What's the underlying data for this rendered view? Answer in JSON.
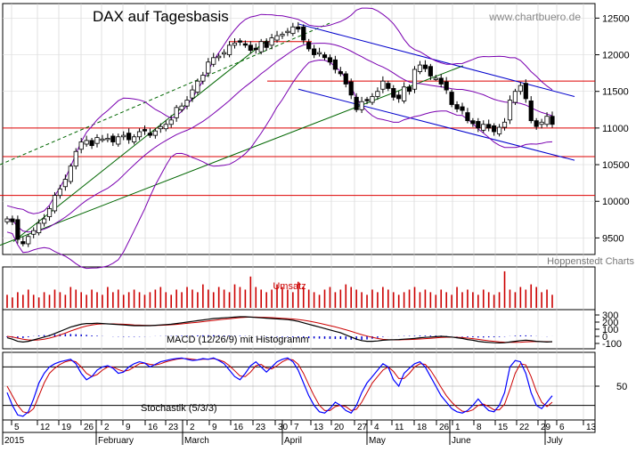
{
  "chart_data": {
    "type": "candlestick",
    "title": "DAX auf Tagesbasis",
    "watermark": "www.chartbuero.de",
    "source": "Hoppenstedt Charts",
    "ylim": [
      9250,
      12650
    ],
    "y_ticks": [
      9500,
      10000,
      10500,
      11000,
      11500,
      12000,
      12500
    ],
    "x_day_ticks": [
      "5",
      "12",
      "19",
      "26",
      "2",
      "9",
      "16",
      "23",
      "2",
      "9",
      "16",
      "23",
      "30",
      "7",
      "13",
      "20",
      "27",
      "4",
      "11",
      "18",
      "26",
      "1",
      "8",
      "15",
      "22",
      "29",
      "6",
      "13"
    ],
    "x_month_labels": [
      "2015",
      "February",
      "March",
      "April",
      "May",
      "June",
      "July"
    ],
    "colors": {
      "up": "#ffffff",
      "down": "#000000",
      "bollinger": "#7a00b0",
      "resistance": "#dd0000",
      "trend_green": "#006600",
      "channel_blue": "#0000cc",
      "volume": "#cc0000",
      "macd": "#000000",
      "signal": "#cc0000",
      "histogram": "#0000cc",
      "stoch_k": "#0000ff",
      "stoch_d": "#cc0000"
    },
    "horizontal_levels": [
      11640,
      11000,
      10610,
      10080,
      12180
    ],
    "closes": [
      9760,
      9720,
      9480,
      9420,
      9520,
      9600,
      9700,
      9760,
      9900,
      10080,
      10170,
      10300,
      10480,
      10680,
      10810,
      10830,
      10760,
      10870,
      10850,
      10860,
      10810,
      10880,
      10900,
      10840,
      10880,
      10950,
      10960,
      10900,
      10960,
      11020,
      11050,
      11110,
      11280,
      11300,
      11380,
      11520,
      11640,
      11720,
      11900,
      11960,
      11980,
      12030,
      12130,
      12160,
      12180,
      12130,
      12060,
      12070,
      12180,
      12100,
      12230,
      12260,
      12280,
      12320,
      12380,
      12350,
      12200,
      12080,
      12000,
      12030,
      11960,
      11900,
      11800,
      11740,
      11600,
      11450,
      11250,
      11360,
      11380,
      11430,
      11500,
      11640,
      11540,
      11420,
      11400,
      11560,
      11500,
      11800,
      11860,
      11810,
      11710,
      11680,
      11600,
      11520,
      11320,
      11260,
      11240,
      11100,
      11060,
      11000,
      11050,
      11000,
      10950,
      11010,
      11080,
      11380,
      11500,
      11580,
      11400,
      11100,
      11020,
      11080,
      11160,
      11050
    ],
    "volume": {
      "label": "Umsatz",
      "values": [
        5,
        4,
        6,
        5,
        7,
        5,
        4,
        6,
        5,
        7,
        6,
        5,
        8,
        7,
        6,
        5,
        7,
        6,
        5,
        8,
        6,
        7,
        5,
        6,
        7,
        6,
        5,
        6,
        7,
        8,
        6,
        5,
        7,
        6,
        8,
        7,
        6,
        9,
        7,
        6,
        8,
        7,
        6,
        9,
        8,
        7,
        12,
        8,
        7,
        6,
        7,
        9,
        8,
        7,
        6,
        10,
        8,
        7,
        6,
        5,
        7,
        8,
        6,
        7,
        9,
        8,
        7,
        6,
        5,
        7,
        6,
        8,
        7,
        6,
        5,
        6,
        7,
        8,
        6,
        7,
        6,
        5,
        7,
        6,
        5,
        8,
        6,
        7,
        6,
        5,
        7,
        6,
        5,
        6,
        14,
        7,
        6,
        8,
        7,
        9,
        8,
        6,
        7,
        5
      ]
    },
    "macd": {
      "label": "MACD (12/26/9) mit Histogramm",
      "ylim": [
        -150,
        350
      ],
      "y_ticks": [
        300,
        200,
        100,
        0,
        -100
      ],
      "macd": [
        -20,
        -40,
        -70,
        -80,
        -70,
        -50,
        -30,
        -10,
        10,
        40,
        70,
        100,
        130,
        150,
        170,
        180,
        180,
        185,
        180,
        175,
        170,
        165,
        160,
        155,
        150,
        150,
        150,
        150,
        155,
        160,
        165,
        170,
        180,
        190,
        200,
        210,
        220,
        230,
        240,
        250,
        255,
        260,
        265,
        270,
        275,
        275,
        270,
        265,
        260,
        255,
        250,
        245,
        240,
        235,
        225,
        210,
        190,
        170,
        150,
        130,
        110,
        90,
        70,
        50,
        20,
        -10,
        -40,
        -60,
        -70,
        -70,
        -65,
        -55,
        -50,
        -48,
        -45,
        -40,
        -35,
        -30,
        -20,
        -15,
        -10,
        -5,
        0,
        -5,
        -10,
        -20,
        -30,
        -45,
        -55,
        -70,
        -80,
        -85,
        -90,
        -92,
        -90,
        -80,
        -70,
        -60,
        -55,
        -60,
        -70,
        -75,
        -80,
        -75
      ],
      "signal": [
        0,
        -10,
        -25,
        -40,
        -50,
        -55,
        -50,
        -40,
        -25,
        -5,
        20,
        45,
        75,
        100,
        125,
        145,
        160,
        170,
        175,
        175,
        175,
        172,
        170,
        165,
        160,
        158,
        155,
        152,
        152,
        155,
        158,
        162,
        168,
        175,
        182,
        190,
        198,
        206,
        215,
        224,
        232,
        240,
        248,
        255,
        262,
        268,
        270,
        270,
        268,
        266,
        262,
        258,
        254,
        249,
        244,
        236,
        226,
        214,
        200,
        184,
        168,
        150,
        132,
        113,
        92,
        70,
        46,
        24,
        4,
        -14,
        -30,
        -42,
        -48,
        -50,
        -50,
        -48,
        -45,
        -42,
        -38,
        -33,
        -28,
        -22,
        -16,
        -12,
        -12,
        -14,
        -18,
        -25,
        -33,
        -43,
        -53,
        -62,
        -70,
        -77,
        -82,
        -84,
        -84,
        -82,
        -78,
        -75,
        -74,
        -74,
        -75,
        -76
      ]
    },
    "stochastic": {
      "label": "Stochastik (5/3/3)",
      "ylim": [
        0,
        100
      ],
      "y_ticks": [
        50
      ],
      "k": [
        40,
        20,
        5,
        3,
        10,
        30,
        55,
        70,
        80,
        85,
        88,
        90,
        92,
        85,
        70,
        60,
        65,
        75,
        80,
        82,
        78,
        70,
        72,
        80,
        85,
        88,
        86,
        80,
        84,
        88,
        90,
        92,
        93,
        94,
        92,
        90,
        91,
        93,
        92,
        94,
        90,
        85,
        75,
        65,
        60,
        70,
        82,
        88,
        80,
        72,
        80,
        88,
        92,
        94,
        88,
        75,
        55,
        35,
        20,
        10,
        8,
        15,
        25,
        20,
        12,
        8,
        20,
        40,
        55,
        65,
        75,
        85,
        80,
        60,
        50,
        70,
        78,
        85,
        88,
        80,
        65,
        50,
        35,
        25,
        15,
        10,
        8,
        12,
        20,
        30,
        20,
        12,
        10,
        20,
        40,
        80,
        90,
        88,
        70,
        40,
        20,
        15,
        25,
        35
      ],
      "d": [
        50,
        35,
        20,
        10,
        8,
        15,
        35,
        55,
        70,
        78,
        84,
        88,
        90,
        88,
        80,
        70,
        65,
        68,
        75,
        80,
        80,
        76,
        73,
        75,
        80,
        85,
        86,
        84,
        83,
        85,
        88,
        90,
        92,
        93,
        93,
        92,
        91,
        92,
        92,
        93,
        91,
        88,
        82,
        74,
        66,
        65,
        72,
        82,
        84,
        78,
        77,
        82,
        88,
        92,
        91,
        84,
        70,
        52,
        35,
        20,
        12,
        12,
        18,
        20,
        18,
        12,
        14,
        25,
        40,
        55,
        65,
        75,
        80,
        73,
        62,
        62,
        70,
        80,
        85,
        84,
        75,
        62,
        48,
        35,
        25,
        17,
        11,
        10,
        13,
        20,
        22,
        18,
        13,
        13,
        22,
        45,
        70,
        85,
        83,
        65,
        42,
        25,
        18,
        25
      ]
    }
  }
}
